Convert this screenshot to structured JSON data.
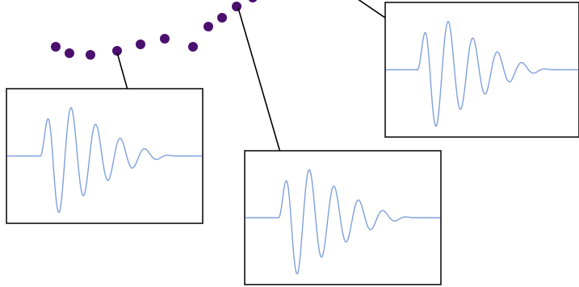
{
  "colors": {
    "background": "#ffffff",
    "dot": "#4b0f70",
    "waveform": "#7f9fdc",
    "frame": "#000000",
    "arrow": "#000000"
  },
  "dots": {
    "count": 11
  },
  "panels": [
    {
      "id": "left",
      "waveform_peaks": 6
    },
    {
      "id": "middle",
      "waveform_peaks": 6
    },
    {
      "id": "right",
      "waveform_peaks": 6
    }
  ],
  "arrows": {
    "count": 3
  }
}
